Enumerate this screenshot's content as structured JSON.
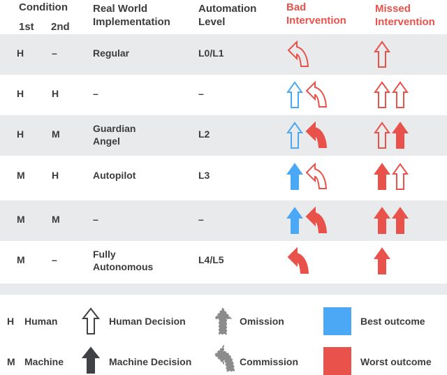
{
  "colors": {
    "human": "#4aa8f4",
    "machine": "#e8524a",
    "legend_gray": "#8c8c8c",
    "legend_dark": "#3f4145",
    "row_shade": "#e9eaec"
  },
  "header": {
    "condition": "Condition",
    "first": "1st",
    "second": "2nd",
    "implementation": "Real World\nImplementation",
    "automation": "Automation\nLevel",
    "bad": "Bad\nIntervention",
    "missed": "Missed\nIntervention"
  },
  "rows": [
    {
      "first": "H",
      "second": "–",
      "impl": "Regular",
      "level": "L0/L1",
      "bad": [
        {
          "kind": "commission",
          "color": "machine",
          "style": "outline"
        }
      ],
      "missed": [
        {
          "kind": "omission",
          "color": "machine",
          "style": "outline"
        }
      ]
    },
    {
      "first": "H",
      "second": "H",
      "impl": "–",
      "level": "–",
      "bad": [
        {
          "kind": "omission",
          "color": "human",
          "style": "outline"
        },
        {
          "kind": "commission",
          "color": "machine",
          "style": "outline"
        }
      ],
      "missed": [
        {
          "kind": "omission",
          "color": "machine",
          "style": "outline"
        },
        {
          "kind": "omission",
          "color": "machine",
          "style": "outline"
        }
      ]
    },
    {
      "first": "H",
      "second": "M",
      "impl": "Guardian\nAngel",
      "level": "L2",
      "bad": [
        {
          "kind": "omission",
          "color": "human",
          "style": "outline"
        },
        {
          "kind": "commission",
          "color": "machine",
          "style": "filled"
        }
      ],
      "missed": [
        {
          "kind": "omission",
          "color": "machine",
          "style": "outline"
        },
        {
          "kind": "omission",
          "color": "machine",
          "style": "filled"
        }
      ]
    },
    {
      "first": "M",
      "second": "H",
      "impl": "Autopilot",
      "level": "L3",
      "bad": [
        {
          "kind": "omission",
          "color": "human",
          "style": "filled"
        },
        {
          "kind": "commission",
          "color": "machine",
          "style": "outline"
        }
      ],
      "missed": [
        {
          "kind": "omission",
          "color": "machine",
          "style": "filled"
        },
        {
          "kind": "omission",
          "color": "machine",
          "style": "outline"
        }
      ]
    },
    {
      "first": "M",
      "second": "M",
      "impl": "–",
      "level": "–",
      "bad": [
        {
          "kind": "omission",
          "color": "human",
          "style": "filled"
        },
        {
          "kind": "commission",
          "color": "machine",
          "style": "filled"
        }
      ],
      "missed": [
        {
          "kind": "omission",
          "color": "machine",
          "style": "filled"
        },
        {
          "kind": "omission",
          "color": "machine",
          "style": "filled"
        }
      ]
    },
    {
      "first": "M",
      "second": "–",
      "impl": "Fully\nAutonomous",
      "level": "L4/L5",
      "bad": [
        {
          "kind": "commission",
          "color": "machine",
          "style": "filled"
        }
      ],
      "missed": [
        {
          "kind": "omission",
          "color": "machine",
          "style": "filled"
        }
      ]
    }
  ],
  "legend": {
    "h_key": "H",
    "h_label": "Human",
    "m_key": "M",
    "m_label": "Machine",
    "human_decision": "Human Decision",
    "machine_decision": "Machine Decision",
    "omission": "Omission",
    "commission": "Commission",
    "best": "Best outcome",
    "worst": "Worst outcome"
  }
}
